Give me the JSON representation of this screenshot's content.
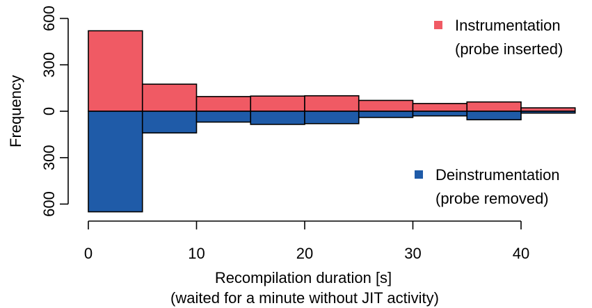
{
  "chart_data": {
    "type": "bar",
    "subtype": "mirrored-histogram",
    "bin_width": 5,
    "bin_starts": [
      0,
      5,
      10,
      15,
      20,
      25,
      30,
      35,
      40
    ],
    "series": [
      {
        "name": "Instrumentation",
        "name_line2": "(probe inserted)",
        "color": "#f05a64",
        "direction": "up",
        "values": [
          520,
          175,
          95,
          98,
          100,
          70,
          50,
          60,
          22
        ]
      },
      {
        "name": "Deinstrumentation",
        "name_line2": "(probe removed)",
        "color": "#1f5ba8",
        "direction": "down",
        "values": [
          650,
          140,
          70,
          85,
          80,
          40,
          30,
          55,
          12
        ]
      }
    ],
    "title": "",
    "xlabel": "Recompilation duration [s]",
    "xlabel_line2": "(waited for a minute without JIT activity)",
    "ylabel": "Frequency",
    "x_ticks": [
      0,
      10,
      20,
      30,
      40
    ],
    "x_tick_labels": [
      "0",
      "10",
      "20",
      "30",
      "40"
    ],
    "y_ticks": [
      600,
      300,
      0,
      -300,
      -600
    ],
    "y_tick_labels": [
      "600",
      "300",
      "0",
      "300",
      "600"
    ],
    "xlim": [
      0,
      45
    ],
    "ylim": [
      -650,
      600
    ],
    "legend": "upper-right and lower-right"
  }
}
